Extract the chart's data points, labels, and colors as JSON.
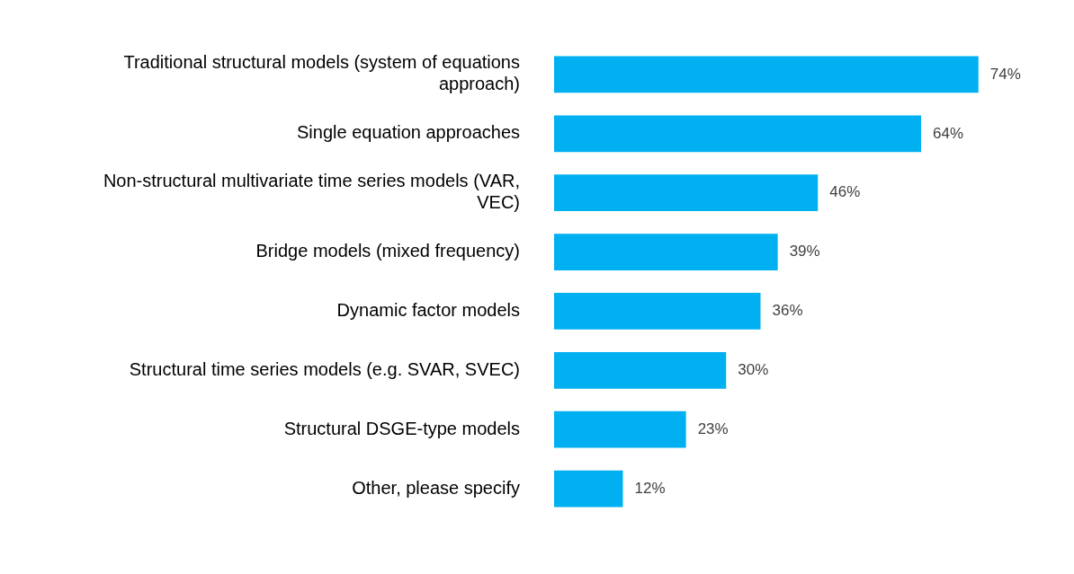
{
  "chart_data": {
    "type": "bar",
    "orientation": "horizontal",
    "categories": [
      "Traditional structural models (system of equations approach)",
      "Single equation approaches",
      "Non-structural multivariate time series models (VAR, VEC)",
      "Bridge models (mixed frequency)",
      "Dynamic factor models",
      "Structural time series models (e.g. SVAR, SVEC)",
      "Structural DSGE-type models",
      "Other, please specify"
    ],
    "values": [
      74,
      64,
      46,
      39,
      36,
      30,
      23,
      12
    ],
    "value_labels": [
      "74%",
      "64%",
      "46%",
      "39%",
      "36%",
      "30%",
      "23%",
      "12%"
    ],
    "color": "#00b0f0",
    "tick_labels": "y"
  }
}
